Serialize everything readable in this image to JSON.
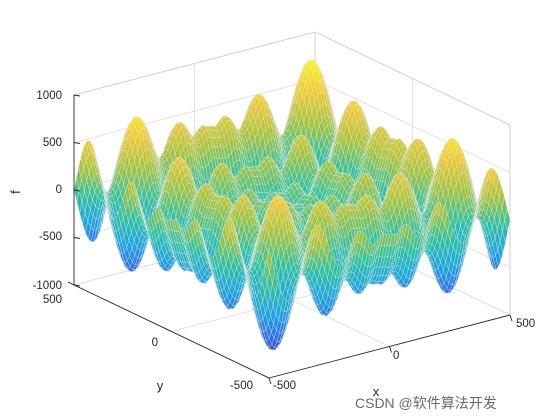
{
  "chart_data": {
    "type": "surface",
    "title": "",
    "xlabel": "x",
    "ylabel": "y",
    "zlabel": "f",
    "xlim": [
      -500,
      500
    ],
    "ylim": [
      -500,
      500
    ],
    "zlim": [
      -1000,
      1000
    ],
    "x_ticks": [
      "-500",
      "0",
      "500"
    ],
    "y_ticks": [
      "-500",
      "0",
      "500"
    ],
    "z_ticks": [
      "-1000",
      "-500",
      "0",
      "500",
      "1000"
    ],
    "function": "f(x,y) = x·sin(√|x|) + y·sin(√|y|)",
    "grid": true,
    "colormap": "parula",
    "colormap_stops": [
      "#3e26a8",
      "#2f6df2",
      "#1ba8e0",
      "#2ec2a1",
      "#a6c43b",
      "#f3c930",
      "#f9fb0e"
    ],
    "colors": {
      "axis": "#262626",
      "grid": "#dcdcdc",
      "edge": "#e6e6e6"
    }
  },
  "watermark": "CSDN @软件算法开发"
}
